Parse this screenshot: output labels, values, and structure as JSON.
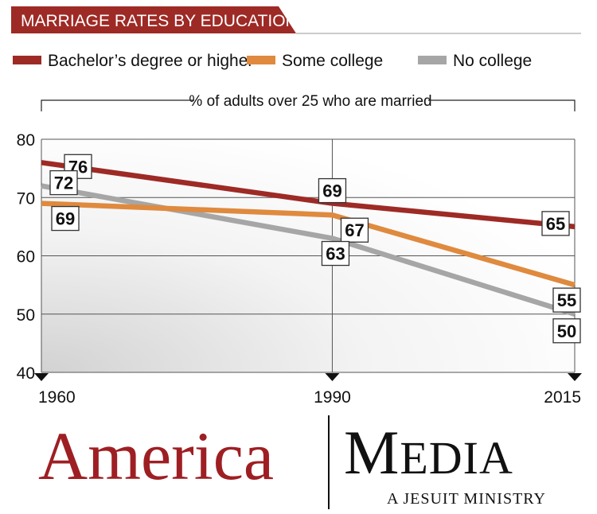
{
  "chart_data": {
    "type": "line",
    "title": "MARRIAGE RATES BY EDUCATION",
    "subtitle": "% of adults over 25 who are married",
    "x": [
      1960,
      1990,
      2015
    ],
    "x_tick_labels": [
      "1960",
      "1990",
      "2015"
    ],
    "ylim": [
      40,
      80
    ],
    "y_ticks": [
      40,
      50,
      60,
      70,
      80
    ],
    "grid": true,
    "legend_position": "top",
    "series": [
      {
        "name": "Bachelor’s degree or higher",
        "color": "#9e2a25",
        "values": [
          76,
          69,
          65
        ]
      },
      {
        "name": "Some college",
        "color": "#df8a3e",
        "values": [
          69,
          67,
          55
        ]
      },
      {
        "name": "No college",
        "color": "#a6a6a6",
        "values": [
          72,
          63,
          50
        ]
      }
    ],
    "colors": {
      "title_bar": "#9e2a25",
      "grid": "#555555",
      "label_border": "#333333"
    }
  },
  "brand": {
    "left": "America",
    "right_initial": "M",
    "right_rest": "EDIA",
    "tagline": "A JESUIT MINISTRY",
    "colors": {
      "left": "#9e1f23",
      "right": "#111111"
    }
  }
}
